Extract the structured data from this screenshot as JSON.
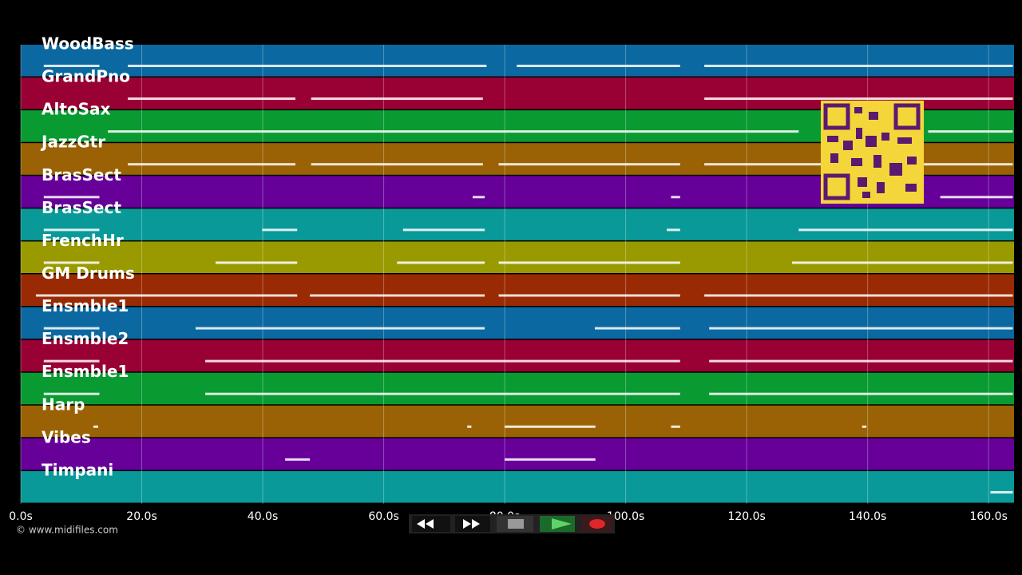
{
  "chart_data": {
    "type": "pianoroll",
    "xlim": [
      0,
      164.2
    ],
    "xticks": [
      {
        "value": 0,
        "label": "0.0s"
      },
      {
        "value": 20,
        "label": "20.0s"
      },
      {
        "value": 40,
        "label": "40.0s"
      },
      {
        "value": 60,
        "label": "60.0s"
      },
      {
        "value": 80,
        "label": "80.0s"
      },
      {
        "value": 100,
        "label": "100.0s"
      },
      {
        "value": 120,
        "label": "120.0s"
      },
      {
        "value": 140,
        "label": "140.0s"
      },
      {
        "value": 160,
        "label": "160.0s"
      }
    ],
    "grid": true,
    "series": [
      {
        "name": "WoodBass",
        "color": "#0b68a0",
        "notes": [
          [
            3.8,
            13
          ],
          [
            17.7,
            77
          ],
          [
            82,
            109
          ],
          [
            113,
            164
          ]
        ]
      },
      {
        "name": "GrandPno",
        "color": "#990033",
        "notes": [
          [
            17.7,
            45.4
          ],
          [
            48,
            76.4
          ],
          [
            113,
            164
          ]
        ]
      },
      {
        "name": "AltoSax",
        "color": "#0a9a32",
        "notes": [
          [
            14.4,
            128.6
          ],
          [
            150,
            164
          ]
        ]
      },
      {
        "name": "JazzGtr",
        "color": "#9a6204",
        "notes": [
          [
            17.7,
            45.4
          ],
          [
            48,
            76.4
          ],
          [
            79,
            109
          ],
          [
            113,
            164
          ]
        ]
      },
      {
        "name": "BrasSect",
        "color": "#660099",
        "notes": [
          [
            3.8,
            13
          ],
          [
            74.7,
            76.7
          ],
          [
            107.5,
            109
          ],
          [
            152,
            164
          ]
        ]
      },
      {
        "name": "BrasSect",
        "color": "#0a9999",
        "notes": [
          [
            3.8,
            13
          ],
          [
            39.9,
            45.7
          ],
          [
            63.2,
            76.7
          ],
          [
            106.8,
            109
          ],
          [
            128.6,
            164
          ]
        ]
      },
      {
        "name": "FrenchHr",
        "color": "#999900",
        "notes": [
          [
            3.8,
            13
          ],
          [
            32.2,
            45.7
          ],
          [
            62.2,
            76.7
          ],
          [
            79,
            109
          ],
          [
            127.5,
            164
          ]
        ]
      },
      {
        "name": "GM Drums",
        "color": "#992a04",
        "notes": [
          [
            2.5,
            45.7
          ],
          [
            47.8,
            76.7
          ],
          [
            79,
            109
          ],
          [
            113,
            164
          ]
        ]
      },
      {
        "name": "Ensmble1",
        "color": "#0b68a0",
        "notes": [
          [
            3.8,
            13
          ],
          [
            28.9,
            76.7
          ],
          [
            94.9,
            109
          ],
          [
            113.8,
            164
          ]
        ]
      },
      {
        "name": "Ensmble2",
        "color": "#990033",
        "notes": [
          [
            3.8,
            13
          ],
          [
            30.5,
            109
          ],
          [
            113.8,
            164
          ]
        ]
      },
      {
        "name": "Ensmble1",
        "color": "#0a9a32",
        "notes": [
          [
            3.8,
            13
          ],
          [
            30.5,
            109
          ],
          [
            113.8,
            164
          ]
        ]
      },
      {
        "name": "Harp",
        "color": "#9a6204",
        "notes": [
          [
            12,
            12.8
          ],
          [
            73.8,
            74.5
          ],
          [
            80,
            95
          ],
          [
            107.5,
            109
          ],
          [
            139.1,
            139.8
          ]
        ]
      },
      {
        "name": "Vibes",
        "color": "#660099",
        "notes": [
          [
            43.7,
            47.8
          ],
          [
            80,
            95
          ]
        ]
      },
      {
        "name": "Timpani",
        "color": "#0a9999",
        "notes": [
          [
            160.3,
            164
          ]
        ]
      }
    ]
  },
  "footer": {
    "credit": "© www.midifiles.com"
  }
}
